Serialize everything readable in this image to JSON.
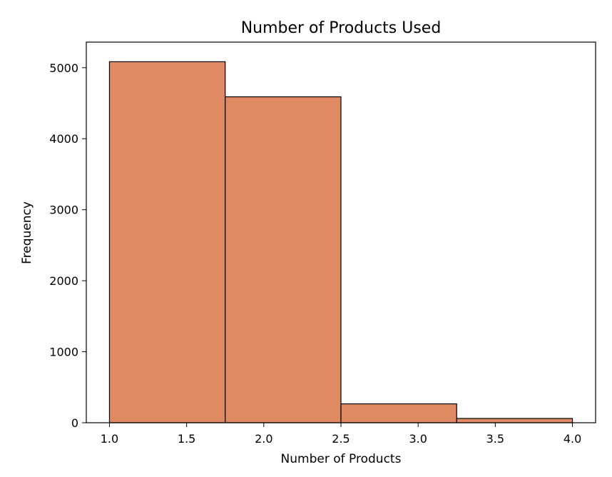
{
  "chart_data": {
    "type": "bar",
    "title": "Number of Products Used",
    "xlabel": "Number of Products",
    "ylabel": "Frequency",
    "xlim": [
      0.85,
      4.15
    ],
    "ylim": [
      0,
      5360
    ],
    "bins": [
      {
        "x0": 1.0,
        "x1": 1.75,
        "value": 5084
      },
      {
        "x0": 1.75,
        "x1": 2.5,
        "value": 4590
      },
      {
        "x0": 2.5,
        "x1": 3.25,
        "value": 266
      },
      {
        "x0": 3.25,
        "x1": 4.0,
        "value": 60
      }
    ],
    "x_ticks": [
      "1.0",
      "1.5",
      "2.0",
      "2.5",
      "3.0",
      "3.5",
      "4.0"
    ],
    "y_ticks": [
      "0",
      "1000",
      "2000",
      "3000",
      "4000",
      "5000"
    ],
    "bar_color": "#e08a64",
    "edge_color": "#000000",
    "grid": false,
    "legend": false
  }
}
